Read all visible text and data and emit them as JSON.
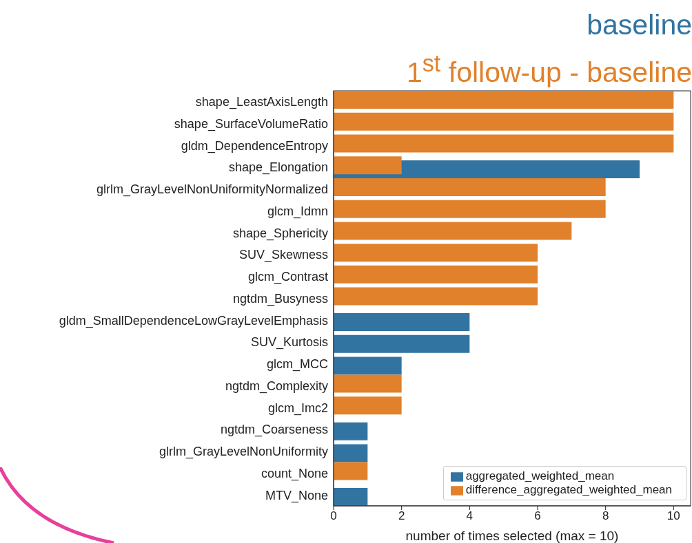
{
  "chart_data": {
    "type": "bar",
    "orientation": "horizontal",
    "title": "baseline",
    "subtitle": "1$^{st}$ follow-up - baseline",
    "xlabel": "number of times selected (max = 10)",
    "categories": [
      "shape_LeastAxisLength",
      "shape_SurfaceVolumeRatio",
      "gldm_DependenceEntropy",
      "shape_Elongation",
      "glrlm_GrayLevelNonUniformityNormalized",
      "glcm_Idmn",
      "shape_Sphericity",
      "SUV_Skewness",
      "glcm_Contrast",
      "ngtdm_Busyness",
      "gldm_SmallDependenceLowGrayLevelEmphasis",
      "SUV_Kurtosis",
      "glcm_MCC",
      "ngtdm_Complexity",
      "glcm_Imc2",
      "ngtdm_Coarseness",
      "glrlm_GrayLevelNonUniformity",
      "count_None",
      "MTV_None"
    ],
    "series": [
      {
        "name": "aggregated_weighted_mean",
        "color": "#3274a1",
        "values": [
          null,
          null,
          null,
          9,
          null,
          null,
          null,
          null,
          null,
          null,
          4,
          4,
          2,
          null,
          null,
          1,
          1,
          null,
          1
        ]
      },
      {
        "name": "difference_aggregated_weighted_mean",
        "color": "#e1812c",
        "values": [
          10,
          10,
          10,
          2,
          8,
          8,
          7,
          6,
          6,
          6,
          null,
          null,
          null,
          2,
          2,
          null,
          null,
          1,
          null
        ]
      }
    ],
    "xlim": [
      0,
      10.5
    ],
    "xticks": [
      0,
      2,
      4,
      6,
      8,
      10
    ],
    "grid": false,
    "legend": "bottom right"
  }
}
